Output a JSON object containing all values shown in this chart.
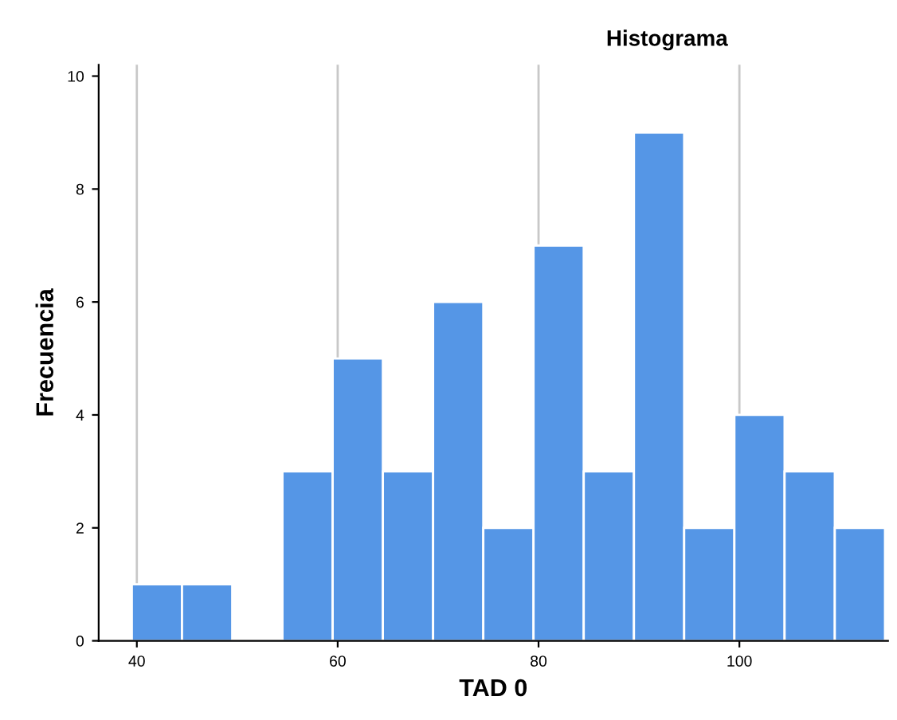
{
  "chart_data": {
    "type": "histogram",
    "title": "Histograma",
    "xlabel": "TAD 0",
    "ylabel": "Frecuencia",
    "bins": [
      39.5,
      44.5,
      49.5,
      54.5,
      59.5,
      64.5,
      69.5,
      74.5,
      79.5,
      84.5,
      89.5,
      94.5,
      99.5,
      104.5,
      109.5,
      114.5
    ],
    "values": [
      1,
      1,
      0,
      3,
      5,
      3,
      6,
      2,
      7,
      3,
      9,
      2,
      4,
      3,
      2
    ],
    "color": "#5596e6",
    "xlim": [
      36.2,
      114.8
    ],
    "xticks": [
      40,
      60,
      80,
      100
    ],
    "ylim": [
      0,
      10.2
    ],
    "yticks": [
      0,
      2,
      4,
      6,
      8,
      10
    ],
    "grid": "x"
  }
}
